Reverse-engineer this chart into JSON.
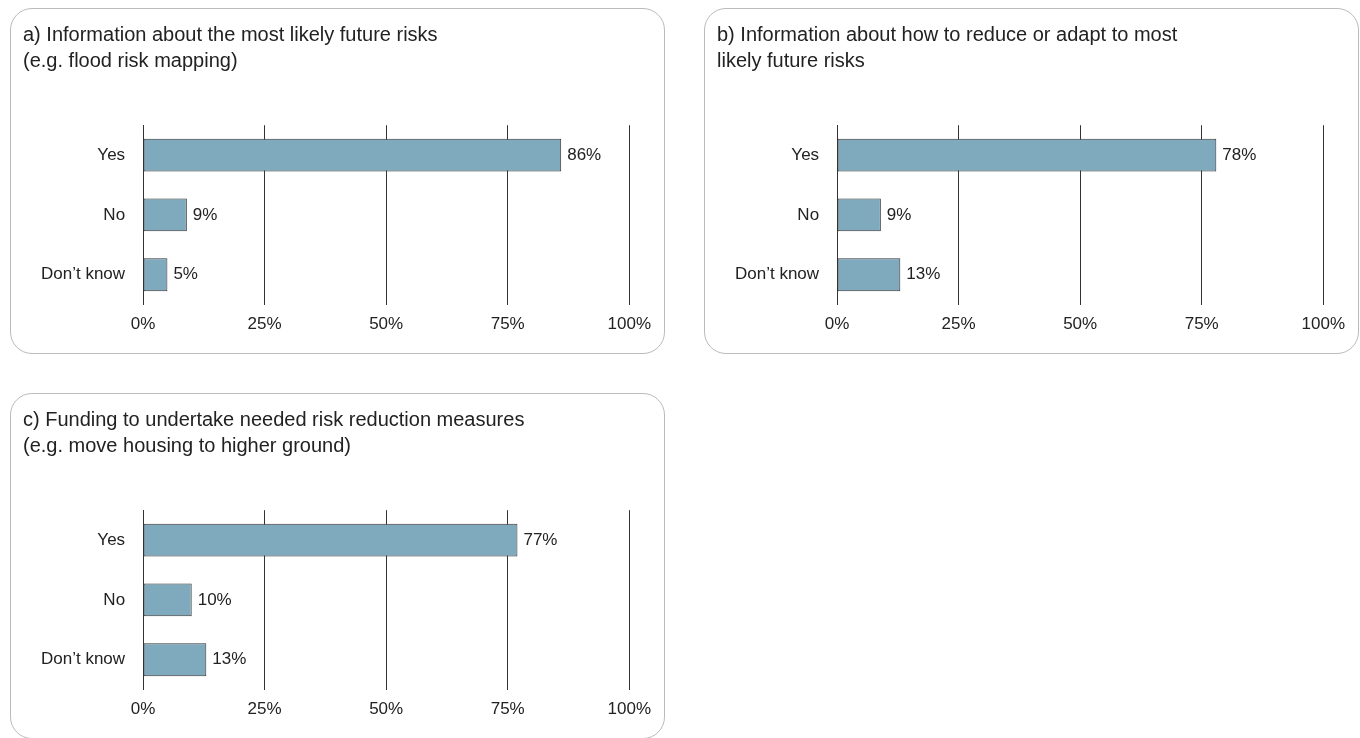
{
  "chart_data": [
    {
      "type": "bar",
      "orientation": "horizontal",
      "title": "a) Information about the most likely future risks\n(e.g. flood risk mapping)",
      "categories": [
        "Yes",
        "No",
        "Don’t know"
      ],
      "values": [
        86,
        9,
        5
      ],
      "value_labels": [
        "86%",
        "9%",
        "5%"
      ],
      "color": "#7fa9bc",
      "xlim": [
        0,
        100
      ],
      "xticks": [
        {
          "value": 0,
          "label": "0%"
        },
        {
          "value": 25,
          "label": "25%"
        },
        {
          "value": 50,
          "label": "50%"
        },
        {
          "value": 75,
          "label": "75%"
        },
        {
          "value": 100,
          "label": "100%"
        }
      ],
      "grid": "x"
    },
    {
      "type": "bar",
      "orientation": "horizontal",
      "title": "b) Information about how to reduce or adapt to most\nlikely future risks",
      "categories": [
        "Yes",
        "No",
        "Don’t know"
      ],
      "values": [
        78,
        9,
        13
      ],
      "value_labels": [
        "78%",
        "9%",
        "13%"
      ],
      "color": "#7fa9bc",
      "xlim": [
        0,
        100
      ],
      "xticks": [
        {
          "value": 0,
          "label": "0%"
        },
        {
          "value": 25,
          "label": "25%"
        },
        {
          "value": 50,
          "label": "50%"
        },
        {
          "value": 75,
          "label": "75%"
        },
        {
          "value": 100,
          "label": "100%"
        }
      ],
      "grid": "x"
    },
    {
      "type": "bar",
      "orientation": "horizontal",
      "title": "c) Funding to undertake needed risk reduction measures\n(e.g. move housing to higher ground)",
      "categories": [
        "Yes",
        "No",
        "Don’t know"
      ],
      "values": [
        77,
        10,
        13
      ],
      "value_labels": [
        "77%",
        "10%",
        "13%"
      ],
      "color": "#7fa9bc",
      "xlim": [
        0,
        100
      ],
      "xticks": [
        {
          "value": 0,
          "label": "0%"
        },
        {
          "value": 25,
          "label": "25%"
        },
        {
          "value": 50,
          "label": "50%"
        },
        {
          "value": 75,
          "label": "75%"
        },
        {
          "value": 100,
          "label": "100%"
        }
      ],
      "grid": "x"
    }
  ]
}
